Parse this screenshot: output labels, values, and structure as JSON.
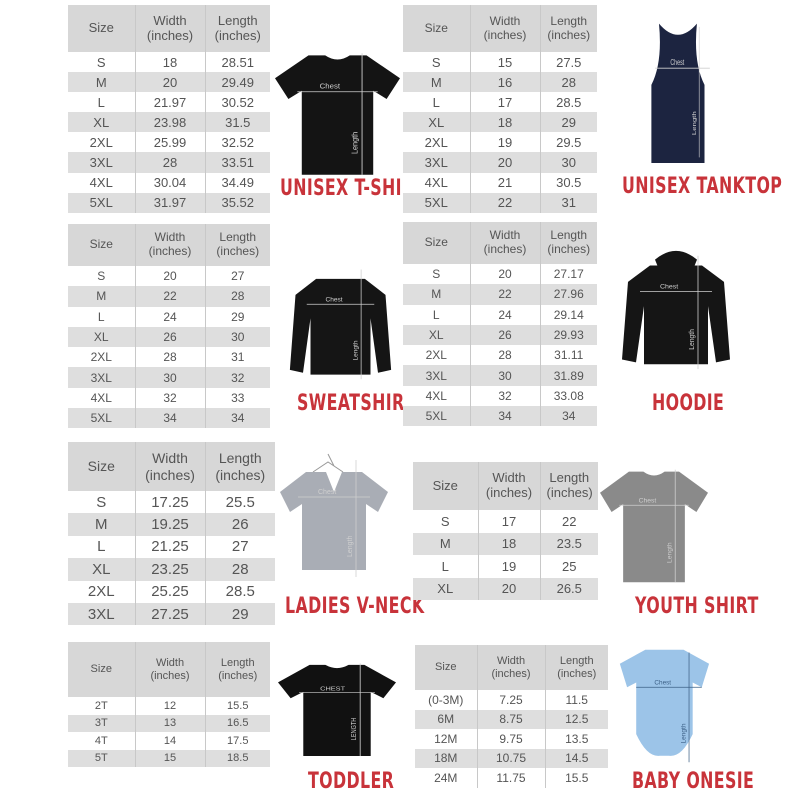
{
  "headers": {
    "size": "Size",
    "width": "Width (inches)",
    "length": "Length (inches)"
  },
  "panels": [
    {
      "title": "UNISEX T-SHIRT",
      "garment": "tshirt-icon",
      "color": "#141414",
      "chest": "Chest",
      "length": "Length",
      "rows": [
        [
          "S",
          "18",
          "28.51"
        ],
        [
          "M",
          "20",
          "29.49"
        ],
        [
          "L",
          "21.97",
          "30.52"
        ],
        [
          "XL",
          "23.98",
          "31.5"
        ],
        [
          "2XL",
          "25.99",
          "32.52"
        ],
        [
          "3XL",
          "28",
          "33.51"
        ],
        [
          "4XL",
          "30.04",
          "34.49"
        ],
        [
          "5XL",
          "31.97",
          "35.52"
        ]
      ]
    },
    {
      "title": "UNISEX TANKTOP",
      "garment": "tanktop-icon",
      "color": "#1c2440",
      "chest": "Chest",
      "length": "Length",
      "rows": [
        [
          "S",
          "15",
          "27.5"
        ],
        [
          "M",
          "16",
          "28"
        ],
        [
          "L",
          "17",
          "28.5"
        ],
        [
          "XL",
          "18",
          "29"
        ],
        [
          "2XL",
          "19",
          "29.5"
        ],
        [
          "3XL",
          "20",
          "30"
        ],
        [
          "4XL",
          "21",
          "30.5"
        ],
        [
          "5XL",
          "22",
          "31"
        ]
      ]
    },
    {
      "title": "SWEATSHIRT",
      "garment": "sweatshirt-icon",
      "color": "#151515",
      "chest": "Chest",
      "length": "Length",
      "rows": [
        [
          "S",
          "20",
          "27"
        ],
        [
          "M",
          "22",
          "28"
        ],
        [
          "L",
          "24",
          "29"
        ],
        [
          "XL",
          "26",
          "30"
        ],
        [
          "2XL",
          "28",
          "31"
        ],
        [
          "3XL",
          "30",
          "32"
        ],
        [
          "4XL",
          "32",
          "33"
        ],
        [
          "5XL",
          "34",
          "34"
        ]
      ]
    },
    {
      "title": "HOODIE",
      "garment": "hoodie-icon",
      "color": "#151515",
      "chest": "Chest",
      "length": "Length",
      "rows": [
        [
          "S",
          "20",
          "27.17"
        ],
        [
          "M",
          "22",
          "27.96"
        ],
        [
          "L",
          "24",
          "29.14"
        ],
        [
          "XL",
          "26",
          "29.93"
        ],
        [
          "2XL",
          "28",
          "31.11"
        ],
        [
          "3XL",
          "30",
          "31.89"
        ],
        [
          "4XL",
          "32",
          "33.08"
        ],
        [
          "5XL",
          "34",
          "34"
        ]
      ]
    },
    {
      "title": "LADIES V-NECK",
      "garment": "vneck-icon",
      "color": "#a9adb5",
      "chest": "Chest",
      "length": "Length",
      "rows": [
        [
          "S",
          "17.25",
          "25.5"
        ],
        [
          "M",
          "19.25",
          "26"
        ],
        [
          "L",
          "21.25",
          "27"
        ],
        [
          "XL",
          "23.25",
          "28"
        ],
        [
          "2XL",
          "25.25",
          "28.5"
        ],
        [
          "3XL",
          "27.25",
          "29"
        ]
      ]
    },
    {
      "title": "YOUTH SHIRT",
      "garment": "youth-shirt-icon",
      "color": "#8a8a8a",
      "chest": "Chest",
      "length": "Length",
      "rows": [
        [
          "S",
          "17",
          "22"
        ],
        [
          "M",
          "18",
          "23.5"
        ],
        [
          "L",
          "19",
          "25"
        ],
        [
          "XL",
          "20",
          "26.5"
        ]
      ]
    },
    {
      "title": "TODDLER",
      "garment": "toddler-shirt-icon",
      "color": "#111111",
      "chest": "CHEST",
      "length": "LENGTH",
      "rows": [
        [
          "2T",
          "12",
          "15.5"
        ],
        [
          "3T",
          "13",
          "16.5"
        ],
        [
          "4T",
          "14",
          "17.5"
        ],
        [
          "5T",
          "15",
          "18.5"
        ]
      ]
    },
    {
      "title": "BABY ONESIE",
      "garment": "onesie-icon",
      "color": "#9cc4e8",
      "chest": "Chest",
      "length": "Length",
      "rows": [
        [
          "(0-3M)",
          "7.25",
          "11.5"
        ],
        [
          "6M",
          "8.75",
          "12.5"
        ],
        [
          "12M",
          "9.75",
          "13.5"
        ],
        [
          "18M",
          "10.75",
          "14.5"
        ],
        [
          "24M",
          "11.75",
          "15.5"
        ]
      ]
    }
  ]
}
